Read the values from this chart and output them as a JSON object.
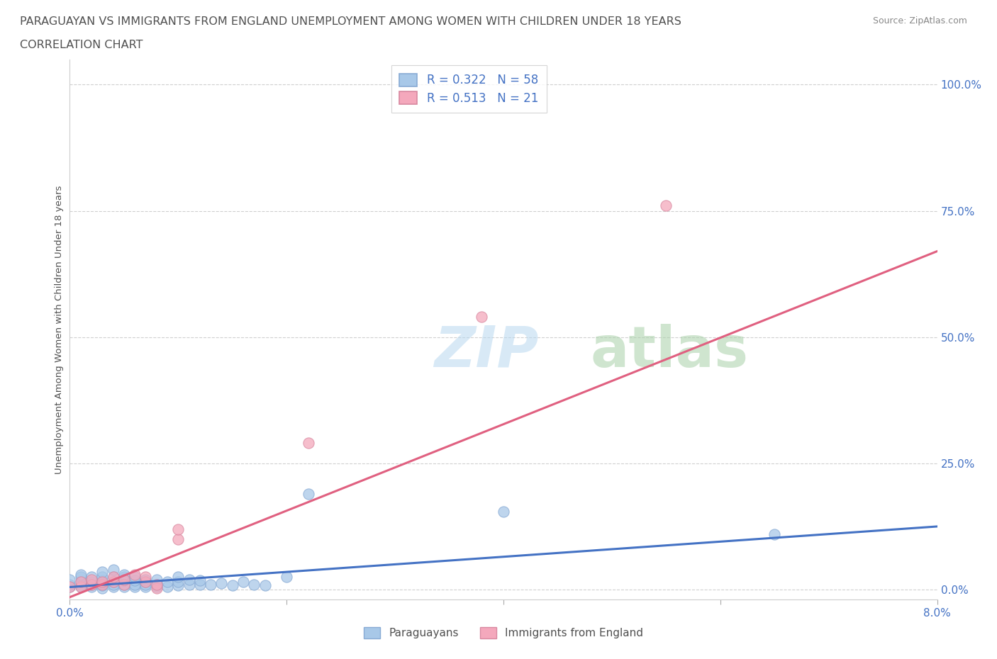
{
  "title_line1": "PARAGUAYAN VS IMMIGRANTS FROM ENGLAND UNEMPLOYMENT AMONG WOMEN WITH CHILDREN UNDER 18 YEARS",
  "title_line2": "CORRELATION CHART",
  "source": "Source: ZipAtlas.com",
  "ylabel": "Unemployment Among Women with Children Under 18 years",
  "xlim": [
    0.0,
    0.08
  ],
  "ylim": [
    -0.02,
    1.05
  ],
  "yticks": [
    0.0,
    0.25,
    0.5,
    0.75,
    1.0
  ],
  "ytick_labels": [
    "0.0%",
    "25.0%",
    "50.0%",
    "75.0%",
    "100.0%"
  ],
  "paraguayan_color": "#a8c8e8",
  "england_color": "#f4a8bc",
  "paraguayan_line_color": "#4472c4",
  "england_line_color": "#e06080",
  "legend_R1": "0.322",
  "legend_N1": "58",
  "legend_R2": "0.513",
  "legend_N2": "21",
  "text_color": "#4472c4",
  "title_color": "#505050",
  "par_line_x0": 0.0,
  "par_line_y0": 0.005,
  "par_line_x1": 0.08,
  "par_line_y1": 0.125,
  "eng_line_x0": 0.0,
  "eng_line_y0": -0.015,
  "eng_line_x1": 0.08,
  "eng_line_y1": 0.67,
  "par_x": [
    0.0,
    0.0,
    0.0,
    0.001,
    0.001,
    0.001,
    0.001,
    0.001,
    0.002,
    0.002,
    0.002,
    0.002,
    0.003,
    0.003,
    0.003,
    0.003,
    0.003,
    0.003,
    0.004,
    0.004,
    0.004,
    0.004,
    0.004,
    0.005,
    0.005,
    0.005,
    0.005,
    0.005,
    0.006,
    0.006,
    0.006,
    0.006,
    0.007,
    0.007,
    0.007,
    0.007,
    0.008,
    0.008,
    0.008,
    0.009,
    0.009,
    0.01,
    0.01,
    0.01,
    0.011,
    0.011,
    0.012,
    0.012,
    0.013,
    0.014,
    0.015,
    0.016,
    0.017,
    0.018,
    0.02,
    0.022,
    0.04,
    0.065
  ],
  "par_y": [
    0.005,
    0.01,
    0.02,
    0.005,
    0.01,
    0.015,
    0.025,
    0.03,
    0.005,
    0.01,
    0.015,
    0.025,
    0.003,
    0.008,
    0.012,
    0.018,
    0.025,
    0.035,
    0.005,
    0.01,
    0.015,
    0.025,
    0.04,
    0.005,
    0.01,
    0.018,
    0.025,
    0.03,
    0.005,
    0.01,
    0.018,
    0.025,
    0.005,
    0.01,
    0.015,
    0.02,
    0.005,
    0.01,
    0.02,
    0.005,
    0.015,
    0.008,
    0.015,
    0.025,
    0.01,
    0.02,
    0.01,
    0.018,
    0.01,
    0.012,
    0.008,
    0.015,
    0.01,
    0.008,
    0.025,
    0.19,
    0.155,
    0.11
  ],
  "eng_x": [
    0.0,
    0.001,
    0.001,
    0.002,
    0.002,
    0.003,
    0.003,
    0.004,
    0.004,
    0.005,
    0.005,
    0.006,
    0.007,
    0.007,
    0.008,
    0.008,
    0.01,
    0.01,
    0.022,
    0.038,
    0.055
  ],
  "eng_y": [
    0.005,
    0.005,
    0.015,
    0.01,
    0.02,
    0.01,
    0.015,
    0.015,
    0.025,
    0.01,
    0.02,
    0.03,
    0.015,
    0.025,
    0.003,
    0.01,
    0.1,
    0.12,
    0.29,
    0.54,
    0.76
  ]
}
